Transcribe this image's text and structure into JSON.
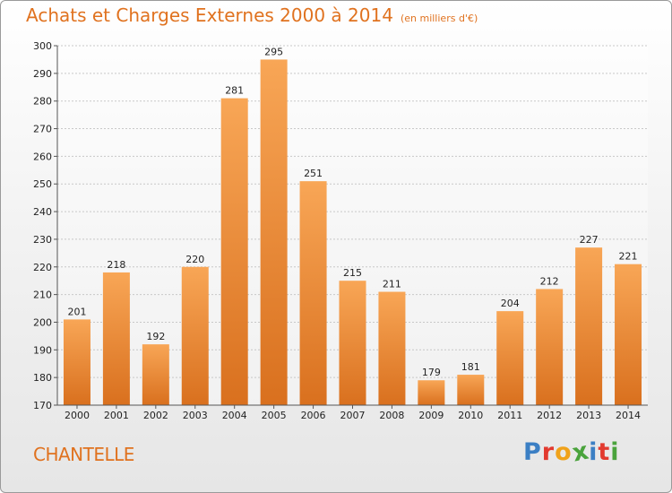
{
  "header": {
    "title": "Achats et Charges Externes 2000 à 2014",
    "unit": "(en milliers d'€)"
  },
  "footer": {
    "town": "CHANTELLE",
    "logo": "Proxiti"
  },
  "colors": {
    "title": "#e0721f",
    "bar_top": "#f8a656",
    "bar_bottom": "#d9701e"
  },
  "chart_data": {
    "type": "bar",
    "title": "Achats et Charges Externes 2000 à 2014",
    "subtitle": "(en milliers d'€)",
    "xlabel": "",
    "ylabel": "",
    "categories": [
      "2000",
      "2001",
      "2002",
      "2003",
      "2004",
      "2005",
      "2006",
      "2007",
      "2008",
      "2009",
      "2010",
      "2011",
      "2012",
      "2013",
      "2014"
    ],
    "values": [
      201,
      218,
      192,
      220,
      281,
      295,
      251,
      215,
      211,
      179,
      181,
      204,
      212,
      227,
      221
    ],
    "ylim": [
      170,
      300
    ],
    "yticks": [
      170,
      180,
      190,
      200,
      210,
      220,
      230,
      240,
      250,
      260,
      270,
      280,
      290,
      300
    ],
    "grid": true,
    "legend": "none"
  }
}
